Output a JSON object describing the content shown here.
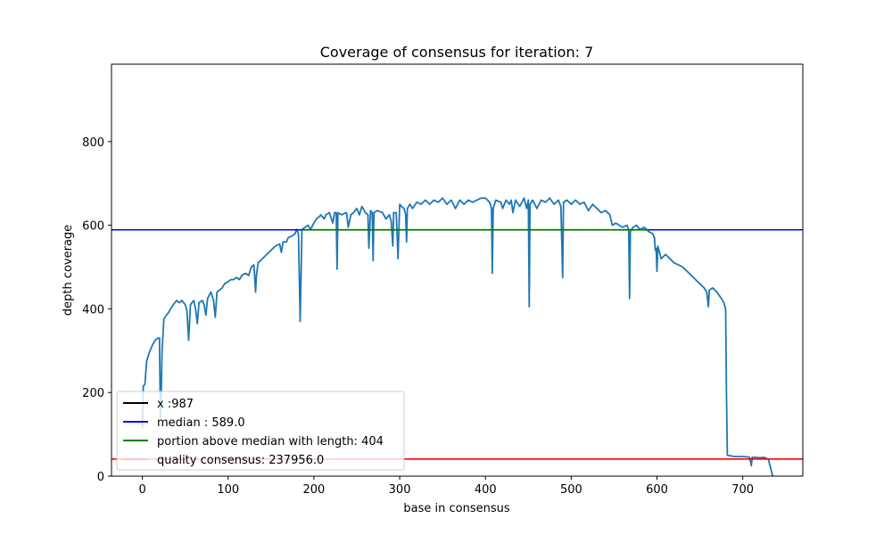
{
  "chart_data": {
    "type": "line",
    "title": "Coverage of consensus for iteration: 7",
    "xlabel": "base in consensus",
    "ylabel": "depth coverage",
    "xlim": [
      -36,
      770
    ],
    "ylim": [
      0,
      985
    ],
    "x_ticks": [
      0,
      100,
      200,
      300,
      400,
      500,
      600,
      700
    ],
    "y_ticks": [
      0,
      200,
      400,
      600,
      800
    ],
    "grid": false,
    "legend_position": "lower-left",
    "legend": [
      {
        "label": "x :987",
        "color": "#000000"
      },
      {
        "label": "median : 589.0",
        "color": "#0000ff"
      },
      {
        "label": "portion above median with length: 404",
        "color": "#008000"
      },
      {
        "label": "quality consensus: 237956.0",
        "color": "#ffc0cb"
      }
    ],
    "reference_lines": {
      "median": {
        "y": 589.0,
        "color": "#0000ff"
      },
      "quality_threshold": {
        "y": 41,
        "color": "#ff0000"
      },
      "portion_above_median": {
        "x_start": 186,
        "x_end": 590,
        "y": 589.0,
        "color": "#008000"
      }
    },
    "series": [
      {
        "color": "#1f77b4",
        "points": [
          [
            0,
            115
          ],
          [
            1,
            215
          ],
          [
            3,
            220
          ],
          [
            5,
            275
          ],
          [
            8,
            295
          ],
          [
            10,
            305
          ],
          [
            12,
            315
          ],
          [
            15,
            325
          ],
          [
            18,
            330
          ],
          [
            20,
            330
          ],
          [
            21,
            140
          ],
          [
            22,
            205
          ],
          [
            23,
            300
          ],
          [
            25,
            375
          ],
          [
            28,
            385
          ],
          [
            30,
            390
          ],
          [
            33,
            400
          ],
          [
            36,
            410
          ],
          [
            40,
            420
          ],
          [
            43,
            415
          ],
          [
            46,
            420
          ],
          [
            50,
            410
          ],
          [
            52,
            395
          ],
          [
            54,
            325
          ],
          [
            56,
            410
          ],
          [
            60,
            420
          ],
          [
            62,
            400
          ],
          [
            64,
            365
          ],
          [
            66,
            415
          ],
          [
            70,
            420
          ],
          [
            72,
            410
          ],
          [
            74,
            385
          ],
          [
            76,
            425
          ],
          [
            80,
            440
          ],
          [
            83,
            420
          ],
          [
            85,
            380
          ],
          [
            87,
            440
          ],
          [
            90,
            445
          ],
          [
            93,
            450
          ],
          [
            96,
            460
          ],
          [
            100,
            465
          ],
          [
            103,
            470
          ],
          [
            106,
            470
          ],
          [
            110,
            475
          ],
          [
            113,
            470
          ],
          [
            116,
            480
          ],
          [
            120,
            485
          ],
          [
            124,
            480
          ],
          [
            127,
            500
          ],
          [
            130,
            505
          ],
          [
            131,
            475
          ],
          [
            132,
            440
          ],
          [
            133,
            480
          ],
          [
            135,
            510
          ],
          [
            140,
            520
          ],
          [
            145,
            530
          ],
          [
            150,
            540
          ],
          [
            155,
            550
          ],
          [
            160,
            555
          ],
          [
            162,
            535
          ],
          [
            164,
            560
          ],
          [
            168,
            560
          ],
          [
            170,
            570
          ],
          [
            175,
            575
          ],
          [
            178,
            580
          ],
          [
            180,
            590
          ],
          [
            182,
            580
          ],
          [
            184,
            370
          ],
          [
            186,
            590
          ],
          [
            190,
            595
          ],
          [
            193,
            600
          ],
          [
            196,
            590
          ],
          [
            200,
            605
          ],
          [
            203,
            615
          ],
          [
            206,
            620
          ],
          [
            208,
            625
          ],
          [
            212,
            615
          ],
          [
            214,
            625
          ],
          [
            218,
            630
          ],
          [
            222,
            605
          ],
          [
            224,
            630
          ],
          [
            226,
            630
          ],
          [
            227,
            495
          ],
          [
            228,
            630
          ],
          [
            232,
            625
          ],
          [
            238,
            630
          ],
          [
            240,
            595
          ],
          [
            243,
            625
          ],
          [
            246,
            630
          ],
          [
            250,
            640
          ],
          [
            253,
            625
          ],
          [
            256,
            645
          ],
          [
            260,
            630
          ],
          [
            263,
            625
          ],
          [
            264,
            545
          ],
          [
            266,
            635
          ],
          [
            268,
            630
          ],
          [
            269,
            515
          ],
          [
            270,
            630
          ],
          [
            274,
            635
          ],
          [
            280,
            630
          ],
          [
            284,
            615
          ],
          [
            288,
            625
          ],
          [
            290,
            610
          ],
          [
            292,
            550
          ],
          [
            293,
            630
          ],
          [
            296,
            630
          ],
          [
            298,
            520
          ],
          [
            300,
            650
          ],
          [
            302,
            645
          ],
          [
            305,
            640
          ],
          [
            307,
            625
          ],
          [
            308,
            560
          ],
          [
            309,
            640
          ],
          [
            312,
            650
          ],
          [
            315,
            640
          ],
          [
            320,
            655
          ],
          [
            325,
            650
          ],
          [
            330,
            660
          ],
          [
            335,
            650
          ],
          [
            340,
            660
          ],
          [
            345,
            655
          ],
          [
            350,
            665
          ],
          [
            355,
            650
          ],
          [
            360,
            660
          ],
          [
            365,
            640
          ],
          [
            370,
            660
          ],
          [
            375,
            650
          ],
          [
            380,
            660
          ],
          [
            385,
            655
          ],
          [
            390,
            660
          ],
          [
            395,
            665
          ],
          [
            400,
            665
          ],
          [
            405,
            655
          ],
          [
            407,
            640
          ],
          [
            408,
            485
          ],
          [
            409,
            640
          ],
          [
            412,
            660
          ],
          [
            418,
            655
          ],
          [
            420,
            640
          ],
          [
            424,
            660
          ],
          [
            428,
            650
          ],
          [
            430,
            660
          ],
          [
            432,
            630
          ],
          [
            435,
            660
          ],
          [
            440,
            645
          ],
          [
            445,
            665
          ],
          [
            448,
            640
          ],
          [
            450,
            660
          ],
          [
            451,
            405
          ],
          [
            452,
            650
          ],
          [
            455,
            660
          ],
          [
            460,
            640
          ],
          [
            465,
            660
          ],
          [
            470,
            655
          ],
          [
            475,
            665
          ],
          [
            480,
            650
          ],
          [
            485,
            660
          ],
          [
            488,
            645
          ],
          [
            490,
            475
          ],
          [
            491,
            655
          ],
          [
            495,
            660
          ],
          [
            500,
            650
          ],
          [
            505,
            660
          ],
          [
            510,
            650
          ],
          [
            515,
            655
          ],
          [
            520,
            635
          ],
          [
            525,
            650
          ],
          [
            530,
            640
          ],
          [
            535,
            630
          ],
          [
            540,
            635
          ],
          [
            545,
            625
          ],
          [
            548,
            600
          ],
          [
            552,
            605
          ],
          [
            556,
            600
          ],
          [
            560,
            595
          ],
          [
            565,
            600
          ],
          [
            567,
            590
          ],
          [
            568,
            425
          ],
          [
            569,
            585
          ],
          [
            572,
            595
          ],
          [
            576,
            600
          ],
          [
            580,
            590
          ],
          [
            585,
            595
          ],
          [
            588,
            590
          ],
          [
            590,
            585
          ],
          [
            595,
            580
          ],
          [
            597,
            570
          ],
          [
            598,
            540
          ],
          [
            599,
            545
          ],
          [
            600,
            490
          ],
          [
            601,
            550
          ],
          [
            605,
            520
          ],
          [
            610,
            530
          ],
          [
            615,
            520
          ],
          [
            620,
            510
          ],
          [
            625,
            505
          ],
          [
            630,
            500
          ],
          [
            635,
            490
          ],
          [
            640,
            480
          ],
          [
            645,
            470
          ],
          [
            650,
            460
          ],
          [
            655,
            450
          ],
          [
            658,
            440
          ],
          [
            660,
            405
          ],
          [
            661,
            445
          ],
          [
            665,
            450
          ],
          [
            670,
            440
          ],
          [
            675,
            425
          ],
          [
            678,
            415
          ],
          [
            680,
            400
          ],
          [
            681,
            200
          ],
          [
            682,
            50
          ],
          [
            690,
            47
          ],
          [
            700,
            47
          ],
          [
            705,
            46
          ],
          [
            708,
            45
          ],
          [
            710,
            25
          ],
          [
            711,
            45
          ],
          [
            715,
            45
          ],
          [
            720,
            44
          ],
          [
            725,
            45
          ],
          [
            730,
            40
          ],
          [
            733,
            15
          ],
          [
            735,
            0
          ]
        ]
      }
    ]
  }
}
